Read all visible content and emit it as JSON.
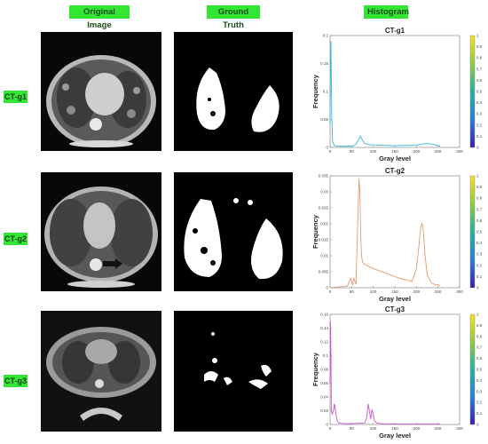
{
  "headers": {
    "original": "Original Image",
    "ground_truth": "Ground Truth",
    "histogram": "Histogram"
  },
  "rows": [
    {
      "label": "CT-g1"
    },
    {
      "label": "CT-g2"
    },
    {
      "label": "CT-g3"
    }
  ],
  "colors": {
    "label_bg": "#33e633",
    "g1_line": "#35b8d9",
    "g2_line": "#e39a6e",
    "g3_line": "#cc55cc"
  },
  "chart_data": [
    {
      "type": "line",
      "title": "CT-g1",
      "xlabel": "Gray  level",
      "ylabel": "Frequency",
      "xlim": [
        0,
        300
      ],
      "ylim": [
        0,
        0.2
      ],
      "x_ticks": [
        0,
        50,
        100,
        150,
        200,
        250,
        300
      ],
      "y_ticks": [
        0,
        0.05,
        0.1,
        0.15,
        0.2
      ],
      "y_tick_labels": [
        "0",
        "0.05",
        "0.1",
        "0.15",
        "0.2"
      ],
      "colorbar_ticks": [
        "0",
        "0.1",
        "0.2",
        "0.3",
        "0.4",
        "0.5",
        "0.6",
        "0.7",
        "0.8",
        "0.9",
        "1"
      ],
      "series": [
        {
          "x": [
            0,
            1,
            2,
            3,
            4,
            6,
            10,
            20,
            40,
            55,
            60,
            65,
            70,
            75,
            80,
            90,
            110,
            150,
            200,
            215,
            225,
            235,
            245,
            255
          ],
          "y": [
            0.04,
            0.15,
            0.19,
            0.12,
            0.05,
            0.01,
            0.003,
            0.002,
            0.002,
            0.003,
            0.006,
            0.012,
            0.02,
            0.013,
            0.007,
            0.005,
            0.004,
            0.003,
            0.004,
            0.006,
            0.007,
            0.006,
            0.004,
            0.002
          ]
        }
      ]
    },
    {
      "type": "line",
      "title": "CT-g2",
      "xlabel": "Gray  level",
      "ylabel": "Frequency",
      "xlim": [
        0,
        300
      ],
      "ylim": [
        0,
        0.035
      ],
      "x_ticks": [
        0,
        50,
        100,
        150,
        200,
        250,
        300
      ],
      "y_ticks": [
        0,
        0.005,
        0.01,
        0.015,
        0.02,
        0.025,
        0.03,
        0.035
      ],
      "y_tick_labels": [
        "0",
        "0.005",
        "0.01",
        "0.015",
        "0.02",
        "0.025",
        "0.03",
        "0.035"
      ],
      "colorbar_ticks": [
        "0",
        "0.1",
        "0.2",
        "0.3",
        "0.4",
        "0.5",
        "0.6",
        "0.7",
        "0.8",
        "0.9",
        "1"
      ],
      "series": [
        {
          "x": [
            0,
            40,
            48,
            52,
            55,
            60,
            64,
            67,
            69,
            71,
            73,
            75,
            78,
            85,
            100,
            130,
            160,
            190,
            200,
            205,
            210,
            213,
            216,
            220,
            225,
            235,
            245,
            250,
            255
          ],
          "y": [
            0.0,
            0.0005,
            0.003,
            0.0008,
            0.003,
            0.001,
            0.02,
            0.034,
            0.03,
            0.016,
            0.01,
            0.008,
            0.0075,
            0.007,
            0.006,
            0.0045,
            0.003,
            0.002,
            0.006,
            0.012,
            0.019,
            0.02,
            0.018,
            0.01,
            0.004,
            0.0015,
            0.0008,
            0.001,
            0.0005
          ]
        }
      ]
    },
    {
      "type": "line",
      "title": "CT-g3",
      "xlabel": "Gray  level",
      "ylabel": "Frequency",
      "xlim": [
        0,
        300
      ],
      "ylim": [
        0,
        0.16
      ],
      "x_ticks": [
        0,
        50,
        100,
        150,
        200,
        250,
        300
      ],
      "y_ticks": [
        0,
        0.02,
        0.04,
        0.06,
        0.08,
        0.1,
        0.12,
        0.14,
        0.16
      ],
      "y_tick_labels": [
        "0",
        "0.02",
        "0.04",
        "0.06",
        "0.08",
        "0.1",
        "0.12",
        "0.14",
        "0.16"
      ],
      "colorbar_ticks": [
        "0",
        "0.1",
        "0.2",
        "0.3",
        "0.4",
        "0.5",
        "0.6",
        "0.7",
        "0.8",
        "0.9",
        "1"
      ],
      "series": [
        {
          "x": [
            0,
            1,
            2,
            3,
            5,
            8,
            10,
            13,
            16,
            20,
            40,
            80,
            85,
            88,
            91,
            94,
            97,
            100,
            103,
            108,
            120,
            160,
            200,
            255
          ],
          "y": [
            0.06,
            0.15,
            0.1,
            0.02,
            0.015,
            0.02,
            0.03,
            0.018,
            0.006,
            0.002,
            0.001,
            0.002,
            0.01,
            0.03,
            0.02,
            0.008,
            0.022,
            0.015,
            0.005,
            0.002,
            0.001,
            0.0005,
            0.0005,
            0.0005
          ]
        }
      ]
    }
  ]
}
